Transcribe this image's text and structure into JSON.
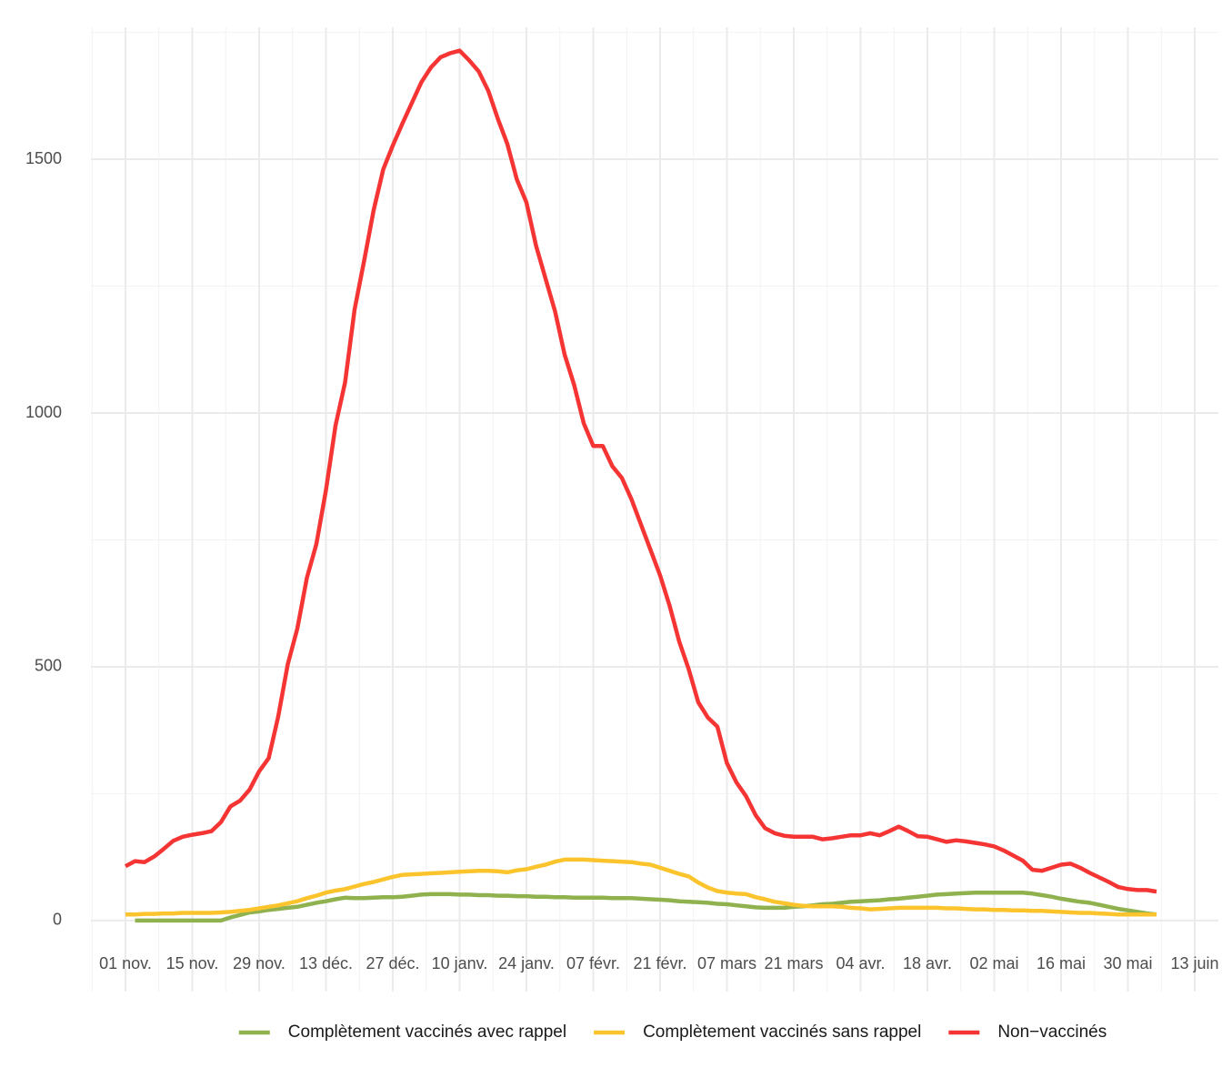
{
  "chart_data": {
    "type": "line",
    "categories": [
      "01 nov.",
      null,
      null,
      null,
      null,
      null,
      null,
      "15 nov.",
      null,
      null,
      null,
      null,
      null,
      null,
      "29 nov.",
      null,
      null,
      null,
      null,
      null,
      null,
      "13 déc.",
      null,
      null,
      null,
      null,
      null,
      null,
      "27 déc.",
      null,
      null,
      null,
      null,
      null,
      null,
      "10 janv.",
      null,
      null,
      null,
      null,
      null,
      null,
      "24 janv.",
      null,
      null,
      null,
      null,
      null,
      null,
      "07 févr.",
      null,
      null,
      null,
      null,
      null,
      null,
      "21 févr.",
      null,
      null,
      null,
      null,
      null,
      null,
      "07 mars",
      null,
      null,
      null,
      null,
      null,
      null,
      "21 mars",
      null,
      null,
      null,
      null,
      null,
      null,
      "04 avr.",
      null,
      null,
      null,
      null,
      null,
      null,
      "18 avr.",
      null,
      null,
      null,
      null,
      null,
      null,
      "02 mai",
      null,
      null,
      null,
      null,
      null,
      null,
      "16 mai",
      null,
      null,
      null,
      null,
      null,
      null,
      "30 mai",
      null,
      null,
      null,
      null,
      null,
      null,
      "13 juin"
    ],
    "series": [
      {
        "name": "Complètement vaccinés avec rappel",
        "color": "#8fb24f",
        "values": [
          null,
          0,
          0,
          0,
          0,
          0,
          0,
          0,
          0,
          0,
          0,
          6,
          11,
          16,
          18,
          21,
          23,
          25,
          27,
          31,
          35,
          38,
          42,
          45,
          44,
          44,
          45,
          46,
          46,
          47,
          49,
          51,
          52,
          52,
          52,
          51,
          51,
          50,
          50,
          49,
          49,
          48,
          48,
          47,
          47,
          46,
          46,
          45,
          45,
          45,
          45,
          44,
          44,
          44,
          43,
          42,
          41,
          40,
          38,
          37,
          36,
          35,
          33,
          32,
          30,
          28,
          26,
          25,
          25,
          25,
          27,
          28,
          30,
          32,
          33,
          35,
          37,
          38,
          39,
          40,
          42,
          43,
          45,
          47,
          49,
          51,
          52,
          53,
          54,
          55,
          55,
          55,
          55,
          55,
          55,
          53,
          50,
          47,
          43,
          40,
          37,
          35,
          31,
          27,
          23,
          20,
          17,
          14,
          12,
          null,
          null,
          null,
          null
        ]
      },
      {
        "name": "Complètement vaccinés sans rappel",
        "color": "#fcc42c",
        "values": [
          12,
          12,
          13,
          13,
          14,
          14,
          15,
          15,
          15,
          15,
          16,
          17,
          19,
          21,
          24,
          27,
          30,
          34,
          38,
          44,
          49,
          55,
          59,
          62,
          67,
          72,
          76,
          81,
          86,
          90,
          91,
          92,
          93,
          94,
          95,
          96,
          97,
          98,
          98,
          97,
          95,
          99,
          101,
          106,
          110,
          116,
          120,
          120,
          120,
          119,
          118,
          117,
          116,
          115,
          112,
          110,
          104,
          98,
          92,
          87,
          75,
          65,
          58,
          55,
          53,
          52,
          46,
          42,
          37,
          34,
          31,
          29,
          28,
          28,
          28,
          27,
          25,
          24,
          22,
          23,
          24,
          25,
          25,
          25,
          25,
          25,
          24,
          24,
          23,
          22,
          22,
          21,
          21,
          20,
          20,
          19,
          19,
          18,
          17,
          16,
          15,
          15,
          14,
          13,
          12,
          12,
          12,
          12,
          12,
          null,
          null,
          null,
          null
        ]
      },
      {
        "name": "Non−vaccinés",
        "color": "#f53434",
        "values": [
          107,
          117,
          115,
          126,
          141,
          157,
          165,
          169,
          172,
          176,
          194,
          225,
          236,
          258,
          294,
          320,
          402,
          505,
          575,
          675,
          742,
          848,
          975,
          1060,
          1204,
          1300,
          1400,
          1480,
          1527,
          1570,
          1611,
          1652,
          1681,
          1701,
          1709,
          1714,
          1695,
          1673,
          1635,
          1580,
          1530,
          1460,
          1415,
          1330,
          1265,
          1200,
          1115,
          1055,
          980,
          935,
          935,
          895,
          872,
          830,
          780,
          730,
          680,
          620,
          550,
          495,
          430,
          400,
          382,
          310,
          272,
          245,
          208,
          182,
          172,
          167,
          165,
          165,
          165,
          160,
          162,
          165,
          168,
          168,
          172,
          168,
          176,
          185,
          176,
          166,
          165,
          160,
          155,
          158,
          156,
          153,
          150,
          146,
          138,
          128,
          118,
          100,
          98,
          104,
          110,
          112,
          104,
          94,
          85,
          76,
          66,
          62,
          60,
          60,
          57,
          null,
          null,
          null,
          null
        ]
      }
    ],
    "ylim": [
      -140,
      1760
    ],
    "yticks": [
      0,
      500,
      1000,
      1500
    ],
    "minor_yticks": [
      250,
      750,
      1250,
      1750
    ],
    "grid": true,
    "legend": "bottom"
  }
}
